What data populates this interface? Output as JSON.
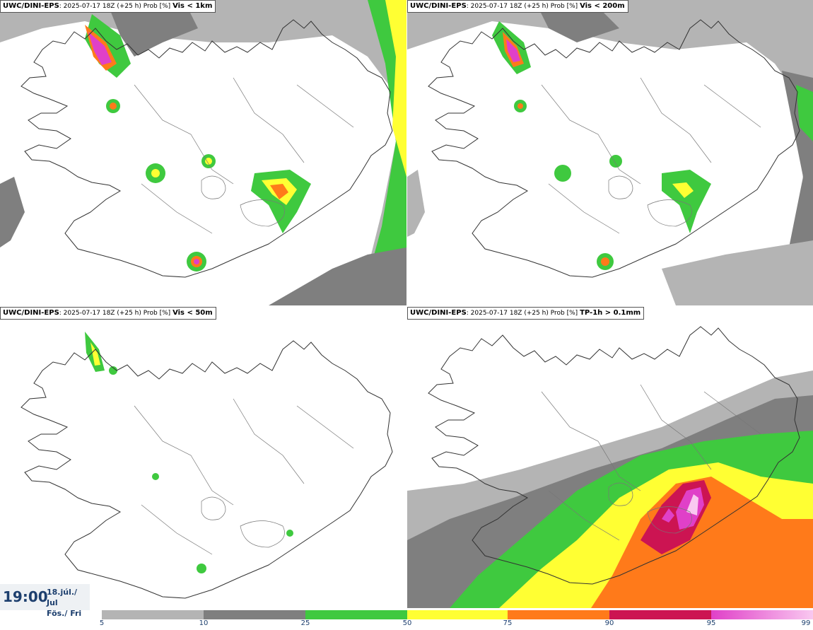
{
  "panels": [
    {
      "source": "UWC/DINI-EPS",
      "run": "2025-07-17 18Z (+25 h) Prob [%]",
      "variable": "Vis < 1km"
    },
    {
      "source": "UWC/DINI-EPS",
      "run": "2025-07-17 18Z (+25 h) Prob [%]",
      "variable": "Vis < 200m"
    },
    {
      "source": "UWC/DINI-EPS",
      "run": "2025-07-17 18Z (+25 h) Prob [%]",
      "variable": "Vis < 50m"
    },
    {
      "source": "UWC/DINI-EPS",
      "run": "2025-07-17 18Z (+25 h) Prob [%]",
      "variable": "TP-1h > 0.1mm"
    }
  ],
  "time": {
    "clock": "19:00",
    "date_line1": "18.júl./ Jul",
    "date_line2": "Fös./ Fri"
  },
  "legend": {
    "ticks": [
      "5",
      "10",
      "25",
      "50",
      "75",
      "90",
      "95",
      "99"
    ],
    "colors": {
      "c5_10": "#b4b4b4",
      "c10_25": "#7f7f7f",
      "c25_50": "#3fc93f",
      "c50_75": "#ffff33",
      "c75_90": "#ff7a1a",
      "c90_95": "#cc1452",
      "c95_99": "#e040c8",
      "c99": "#f9c8f0"
    }
  }
}
